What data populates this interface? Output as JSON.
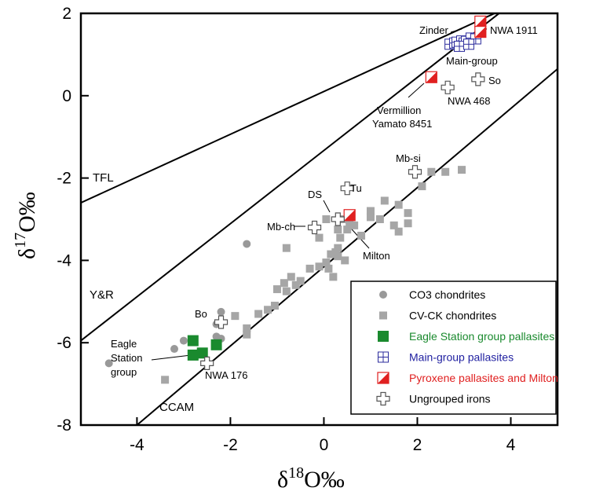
{
  "chart_data": {
    "type": "scatter",
    "xlabel": {
      "main": "δ",
      "sup": "18",
      "rest": "O‰"
    },
    "ylabel": {
      "main": "δ",
      "sup": "17",
      "rest": "O‰"
    },
    "xlim": [
      -5.2,
      5.0
    ],
    "ylim": [
      -8,
      2
    ],
    "xticks": [
      -4,
      -2,
      0,
      2,
      4
    ],
    "yticks": [
      -8,
      -6,
      -4,
      -2,
      0,
      2
    ],
    "grid": false,
    "legend_position": "bottom-right",
    "reference_lines": [
      {
        "name": "TFL",
        "points": [
          [
            -5.2,
            -2.6
          ],
          [
            5.0,
            2.7
          ]
        ]
      },
      {
        "name": "Y&R",
        "points": [
          [
            -5.2,
            -5.95
          ],
          [
            3.75,
            2.0
          ]
        ]
      },
      {
        "name": "CCAM",
        "points": [
          [
            -4.0,
            -8.0
          ],
          [
            5.0,
            0.65
          ]
        ]
      }
    ],
    "series": [
      {
        "name": "CO3 chondrites",
        "marker": "circle",
        "color": "#999999",
        "points": [
          [
            -4.6,
            -6.5
          ],
          [
            -3.2,
            -6.15
          ],
          [
            -3.0,
            -5.95
          ],
          [
            -2.3,
            -5.55
          ],
          [
            -2.2,
            -5.25
          ],
          [
            -2.3,
            -5.85
          ],
          [
            -2.2,
            -5.9
          ],
          [
            -1.65,
            -3.6
          ]
        ]
      },
      {
        "name": "CV-CK chondrites",
        "marker": "square",
        "color": "#a6a6a6",
        "points": [
          [
            -3.4,
            -6.9
          ],
          [
            -1.9,
            -5.35
          ],
          [
            -1.65,
            -5.65
          ],
          [
            -1.65,
            -5.8
          ],
          [
            -1.4,
            -5.3
          ],
          [
            -1.2,
            -5.2
          ],
          [
            -1.05,
            -5.1
          ],
          [
            -0.8,
            -4.75
          ],
          [
            -0.6,
            -4.6
          ],
          [
            -1.0,
            -4.7
          ],
          [
            -0.85,
            -4.55
          ],
          [
            -0.7,
            -4.4
          ],
          [
            -0.5,
            -4.5
          ],
          [
            -0.3,
            -4.2
          ],
          [
            -0.1,
            -4.15
          ],
          [
            0.05,
            -4.05
          ],
          [
            0.1,
            -4.2
          ],
          [
            0.2,
            -4.4
          ],
          [
            0.3,
            -3.9
          ],
          [
            0.45,
            -4.0
          ],
          [
            0.15,
            -3.85
          ],
          [
            0.25,
            -3.8
          ],
          [
            0.3,
            -3.7
          ],
          [
            0.5,
            -3.25
          ],
          [
            0.3,
            -3.25
          ],
          [
            0.55,
            -3.1
          ],
          [
            -0.8,
            -3.7
          ],
          [
            -0.1,
            -3.45
          ],
          [
            0.35,
            -3.45
          ],
          [
            0.65,
            -3.15
          ],
          [
            0.8,
            -3.4
          ],
          [
            1.0,
            -2.8
          ],
          [
            1.2,
            -3.0
          ],
          [
            1.3,
            -2.55
          ],
          [
            1.6,
            -2.65
          ],
          [
            1.0,
            -2.95
          ],
          [
            1.5,
            -3.15
          ],
          [
            1.6,
            -3.3
          ],
          [
            1.8,
            -2.85
          ],
          [
            1.8,
            -3.1
          ],
          [
            2.1,
            -2.2
          ],
          [
            2.3,
            -1.85
          ],
          [
            2.6,
            -1.85
          ],
          [
            2.95,
            -1.8
          ],
          [
            0.4,
            -3.0
          ],
          [
            0.05,
            -3.0
          ]
        ]
      },
      {
        "name": "Eagle Station group pallasites",
        "marker": "square-filled-large",
        "color": "#1a8a2e",
        "points": [
          [
            -2.8,
            -5.95
          ],
          [
            -2.8,
            -6.3
          ],
          [
            -2.6,
            -6.25
          ],
          [
            -2.3,
            -6.05
          ]
        ]
      },
      {
        "name": "Main-group pallasites",
        "marker": "square-grid",
        "color": "#2b2b9c",
        "points": [
          [
            2.7,
            1.25
          ],
          [
            2.8,
            1.28
          ],
          [
            2.85,
            1.3
          ],
          [
            2.95,
            1.33
          ],
          [
            3.0,
            1.28
          ],
          [
            3.05,
            1.32
          ],
          [
            3.15,
            1.4
          ],
          [
            3.25,
            1.38
          ],
          [
            2.9,
            1.2
          ],
          [
            3.1,
            1.25
          ]
        ]
      },
      {
        "name": "Pyroxene pallasites and Milton",
        "marker": "square-diagonal",
        "color": "#e02020",
        "points": [
          [
            2.3,
            0.45
          ],
          [
            3.35,
            1.8
          ],
          [
            3.35,
            1.55
          ],
          [
            0.55,
            -2.9
          ]
        ]
      },
      {
        "name": "Ungrouped irons",
        "marker": "cross",
        "color": "#ffffff",
        "points": [
          [
            3.3,
            0.4
          ],
          [
            2.65,
            0.2
          ],
          [
            1.95,
            -1.85
          ],
          [
            0.5,
            -2.25
          ],
          [
            0.3,
            -3.0
          ],
          [
            -0.2,
            -3.2
          ],
          [
            -2.2,
            -5.5
          ],
          [
            -2.5,
            -6.5
          ]
        ]
      }
    ],
    "annotations": [
      {
        "text": "Zinder"
      },
      {
        "text": "NWA 1911"
      },
      {
        "text": "Main-group"
      },
      {
        "text": "So"
      },
      {
        "text": "NWA 468"
      },
      {
        "text": "Vermillion"
      },
      {
        "text": "Yamato 8451"
      },
      {
        "text": "Mb-si"
      },
      {
        "text": "Tu"
      },
      {
        "text": "DS"
      },
      {
        "text": "Mb-ch"
      },
      {
        "text": "Milton"
      },
      {
        "text": "Bo"
      },
      {
        "text": "Eagle"
      },
      {
        "text": "Station"
      },
      {
        "text": "group"
      },
      {
        "text": "NWA 176"
      }
    ]
  }
}
